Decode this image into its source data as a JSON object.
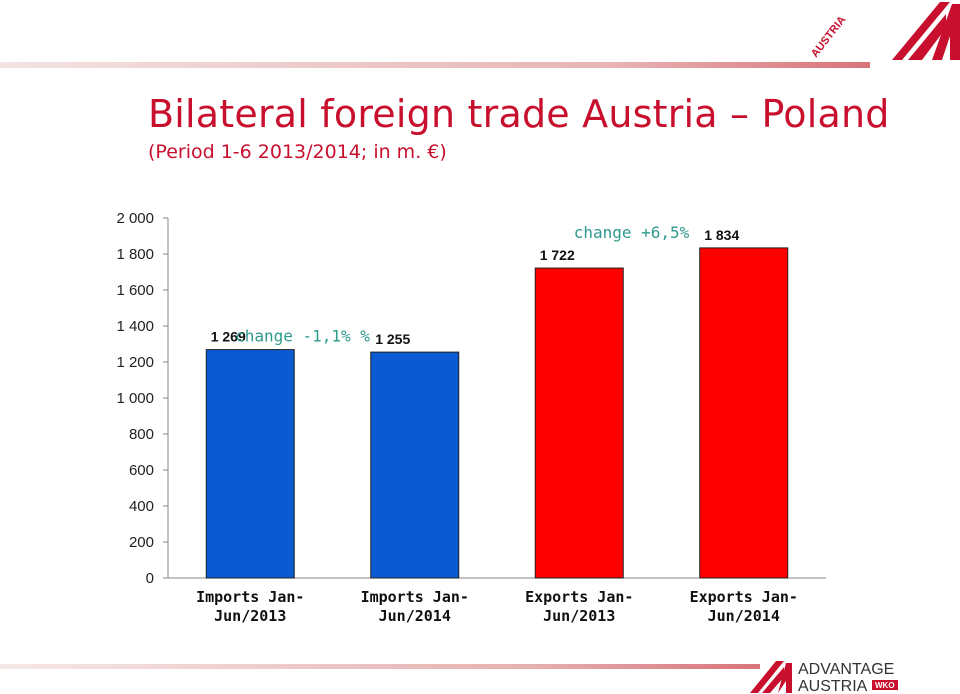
{
  "header": {
    "title": "Bilateral foreign trade Austria – Poland",
    "subtitle": "(Period 1-6 2013/2014; in m. €)"
  },
  "logos": {
    "top_text": "AUSTRIA",
    "bottom_line1": "ADVANTAGE",
    "bottom_line2": "AUSTRIA",
    "bottom_badge": "WKO"
  },
  "colors": {
    "accent": "#c8102e",
    "imports": "#0a5bd1",
    "exports": "#ff0000",
    "annotation": "#2e9a8e"
  },
  "chart_data": {
    "type": "bar",
    "categories": [
      [
        "Imports Jan-",
        "Jun/2013"
      ],
      [
        "Imports Jan-",
        "Jun/2014"
      ],
      [
        "Exports Jan-",
        "Jun/2013"
      ],
      [
        "Exports Jan-",
        "Jun/2014"
      ]
    ],
    "values": [
      1269,
      1255,
      1722,
      1834
    ],
    "data_labels": [
      "1 269",
      "1 255",
      "1 722",
      "1 834"
    ],
    "bar_colors": [
      "#0a5bd1",
      "#0a5bd1",
      "#ff0000",
      "#ff0000"
    ],
    "ylim": [
      0,
      2000
    ],
    "yticks": [
      0,
      200,
      400,
      600,
      800,
      1000,
      1200,
      1400,
      1600,
      1800,
      2000
    ],
    "ytick_labels": [
      "0",
      "200",
      "400",
      "600",
      "800",
      "1 000",
      "1 200",
      "1 400",
      "1 600",
      "1 800",
      "2 000"
    ],
    "annotations": [
      {
        "text": "change -1,1% %",
        "between": [
          0,
          1
        ]
      },
      {
        "text": "change +6,5%",
        "between": [
          2,
          3
        ]
      }
    ],
    "grid": false,
    "legend": "none"
  }
}
